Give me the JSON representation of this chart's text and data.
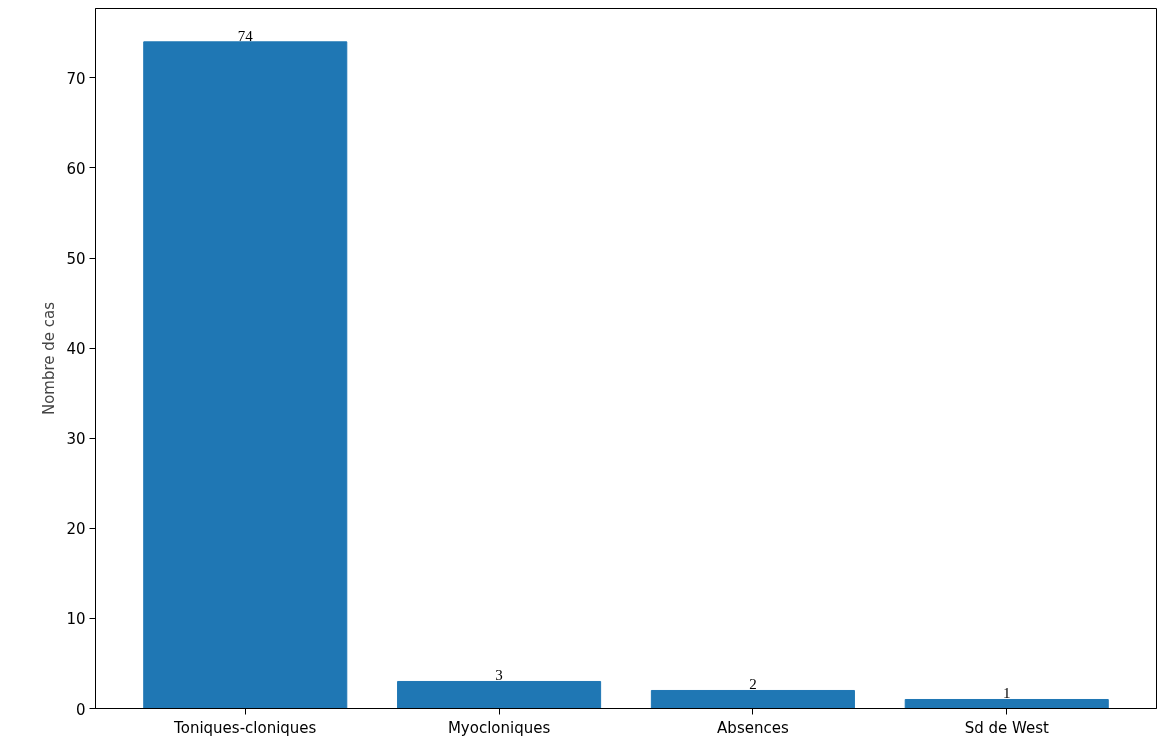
{
  "chart_data": {
    "type": "bar",
    "ylabel": "Nombre de cas",
    "categories": [
      "Toniques-cloniques",
      "Myocloniques",
      "Absences",
      "Sd de West"
    ],
    "values": [
      74,
      3,
      2,
      1
    ],
    "color": "#1f77b4",
    "ylim": [
      0,
      77.7
    ],
    "yticks": [
      0,
      10,
      20,
      30,
      40,
      50,
      60,
      70
    ],
    "grid": false,
    "data_labels": true
  }
}
